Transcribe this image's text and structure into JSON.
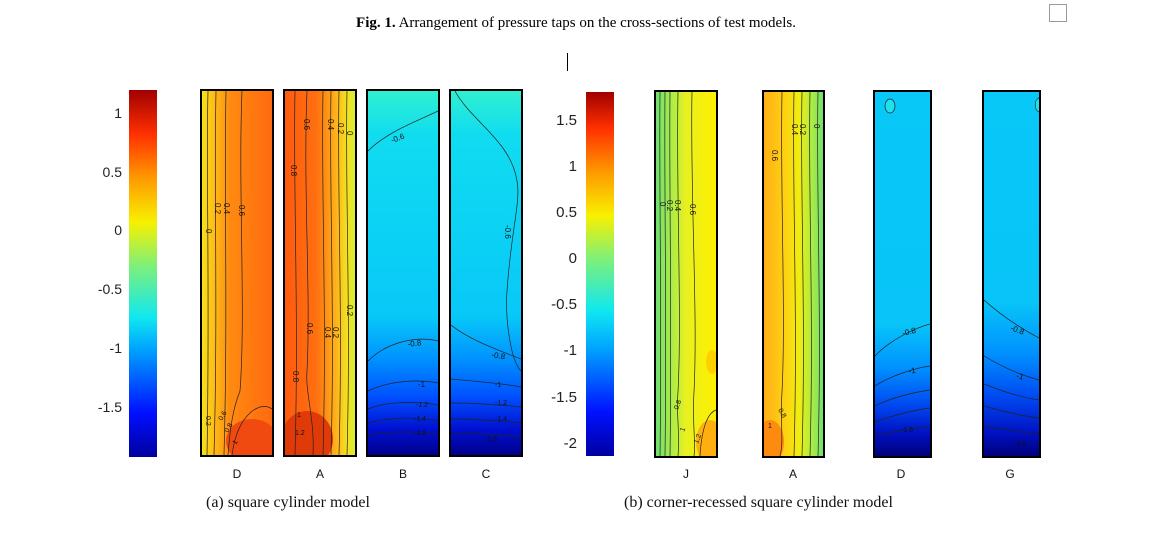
{
  "figure": {
    "label": "Fig. 1.",
    "caption": "Arrangement of pressure taps on the cross-sections of test models."
  },
  "plot_a": {
    "subcaption": "(a) square cylinder model",
    "colorbar_ticks": [
      "1",
      "0.5",
      "0",
      "-0.5",
      "-1",
      "-1.5"
    ],
    "panels": [
      {
        "label": "D",
        "contours": [
          "0",
          "0.2",
          "0.4",
          "0.6",
          "0.2",
          "0.6",
          "0.8",
          "1"
        ]
      },
      {
        "label": "A",
        "contours": [
          "0.6",
          "0.4",
          "0.2",
          "0",
          "0.8",
          "0.6",
          "0.4",
          "0.2",
          "0.2",
          "0.8",
          "1",
          "1.2"
        ]
      },
      {
        "label": "B",
        "contours": [
          "-0.6",
          "-0.8",
          "-1",
          "-1.2",
          "-1.4",
          "-1.6"
        ]
      },
      {
        "label": "C",
        "contours": [
          "-0.6",
          "-0.8",
          "-1",
          "-1.2",
          "-1.4",
          "-1.6"
        ]
      }
    ]
  },
  "plot_b": {
    "subcaption": "(b) corner-recessed square cylinder model",
    "colorbar_ticks": [
      "1.5",
      "1",
      "0.5",
      "0",
      "-0.5",
      "-1",
      "-1.5",
      "-2"
    ],
    "panels": [
      {
        "label": "J",
        "contours": [
          "0",
          "0.2",
          "0.4",
          "0.6",
          "0.8",
          "1",
          "1.2"
        ]
      },
      {
        "label": "A",
        "contours": [
          "0",
          "0.2",
          "0.4",
          "0.6",
          "0.8",
          "1"
        ]
      },
      {
        "label": "D",
        "contours": [
          "-0.8",
          "-1",
          "-1.6"
        ]
      },
      {
        "label": "G",
        "contours": [
          "-0.8",
          "-1",
          "-1.8"
        ]
      }
    ]
  },
  "chart_data": [
    {
      "type": "heatmap",
      "title": "(a) square cylinder model",
      "categories": [
        "D",
        "A",
        "B",
        "C"
      ],
      "colorbar_range": [
        -1.9,
        1.2
      ],
      "colorbar_ticks": [
        1,
        0.5,
        0,
        -0.5,
        -1,
        -1.5
      ],
      "approx_mean_values": {
        "D": 0.6,
        "A": 0.8,
        "B": -0.7,
        "C": -0.7
      }
    },
    {
      "type": "heatmap",
      "title": "(b) corner-recessed square cylinder model",
      "categories": [
        "J",
        "A",
        "D",
        "G"
      ],
      "colorbar_range": [
        -2.1,
        1.8
      ],
      "colorbar_ticks": [
        1.5,
        1,
        0.5,
        0,
        -0.5,
        -1,
        -1.5,
        -2
      ],
      "approx_mean_values": {
        "J": 0.3,
        "A": 0.6,
        "D": -0.7,
        "G": -0.7
      }
    }
  ]
}
